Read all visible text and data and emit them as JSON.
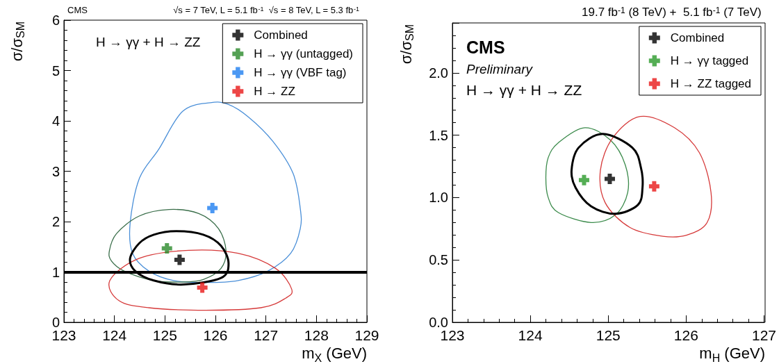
{
  "chart_data": [
    {
      "type": "scatter",
      "title": "CMS",
      "subtitle": "√s = 7 TeV, L = 5.1 fb$^{-1}$  √s = 8 TeV, L = 5.3 fb$^{-1}$",
      "xlabel": "m$_{X}$ (GeV)",
      "ylabel": "σ/σ$_{SM}$",
      "annotations": [
        "H → γγ + H → ZZ"
      ],
      "xlim": [
        123,
        129
      ],
      "xticks": [
        123,
        124,
        125,
        126,
        127,
        128,
        129
      ],
      "ylim": [
        0,
        6
      ],
      "yticks": [
        0,
        1,
        2,
        3,
        4,
        5,
        6
      ],
      "grid": false,
      "legend": "top right",
      "marker": "cross",
      "ref_lines": [
        {
          "axis": "y",
          "value": 1,
          "color": "#000000"
        }
      ],
      "series": [
        {
          "name": "Combined",
          "color": "#000000",
          "x": [
            125.29
          ],
          "values": [
            1.24
          ]
        },
        {
          "name": "H → γγ (untagged)",
          "color": "#2a8a2a",
          "x": [
            125.04
          ],
          "values": [
            1.47
          ]
        },
        {
          "name": "H → γγ (VBF tag)",
          "color": "#1e7ef0",
          "x": [
            125.94
          ],
          "values": [
            2.27
          ]
        },
        {
          "name": "H → ZZ",
          "color": "#e81818",
          "x": [
            125.74
          ],
          "values": [
            0.69
          ]
        }
      ]
    },
    {
      "type": "scatter",
      "subtitle": "19.7 fb$^{-1}$ (8 TeV) +  5.1 fb$^{-1}$ (7 TeV)",
      "xlabel": "m$_{H}$ (GeV)",
      "ylabel": "σ/σ$_{SM}$",
      "annotations": [
        "CMS",
        "Preliminary",
        "H → γγ + H → ZZ"
      ],
      "xlim": [
        123,
        127
      ],
      "xticks": [
        123,
        124,
        125,
        126,
        127
      ],
      "ylim": [
        0,
        2.4
      ],
      "yticks": [
        {
          "value": 0,
          "label": "0.0"
        },
        {
          "value": 0.5,
          "label": "0.5"
        },
        {
          "value": 1,
          "label": "1.0"
        },
        {
          "value": 1.5,
          "label": "1.5"
        },
        {
          "value": 2,
          "label": "2.0"
        }
      ],
      "grid": false,
      "legend": "top right",
      "marker": "cross",
      "series": [
        {
          "name": "Combined",
          "color": "#000000",
          "x": [
            125.02
          ],
          "values": [
            1.15
          ]
        },
        {
          "name": "H → γγ tagged",
          "color": "#2a9a2a",
          "x": [
            124.69
          ],
          "values": [
            1.14
          ]
        },
        {
          "name": "H → ZZ tagged",
          "color": "#e81818",
          "x": [
            125.59
          ],
          "values": [
            1.09
          ]
        }
      ]
    }
  ]
}
